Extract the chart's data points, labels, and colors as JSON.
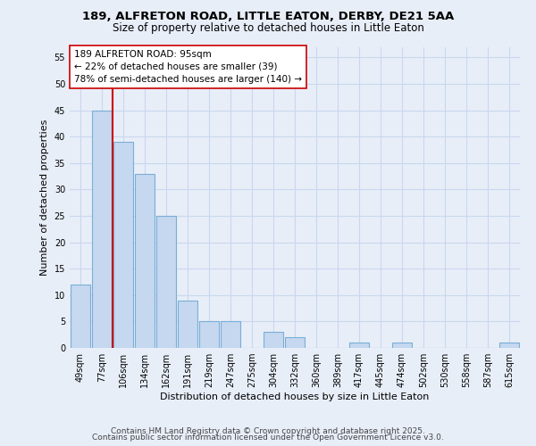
{
  "title_line1": "189, ALFRETON ROAD, LITTLE EATON, DERBY, DE21 5AA",
  "title_line2": "Size of property relative to detached houses in Little Eaton",
  "xlabel": "Distribution of detached houses by size in Little Eaton",
  "ylabel": "Number of detached properties",
  "categories": [
    "49sqm",
    "77sqm",
    "106sqm",
    "134sqm",
    "162sqm",
    "191sqm",
    "219sqm",
    "247sqm",
    "275sqm",
    "304sqm",
    "332sqm",
    "360sqm",
    "389sqm",
    "417sqm",
    "445sqm",
    "474sqm",
    "502sqm",
    "530sqm",
    "558sqm",
    "587sqm",
    "615sqm"
  ],
  "values": [
    12,
    45,
    39,
    33,
    25,
    9,
    5,
    5,
    0,
    3,
    2,
    0,
    0,
    1,
    0,
    1,
    0,
    0,
    0,
    0,
    1
  ],
  "bar_color": "#c5d8f0",
  "bar_edge_color": "#7aaed6",
  "vline_x_idx": 1.5,
  "vline_color": "#cc0000",
  "annotation_text": "189 ALFRETON ROAD: 95sqm\n← 22% of detached houses are smaller (39)\n78% of semi-detached houses are larger (140) →",
  "annotation_box_facecolor": "#ffffff",
  "annotation_box_edgecolor": "#cc0000",
  "ylim": [
    0,
    57
  ],
  "yticks": [
    0,
    5,
    10,
    15,
    20,
    25,
    30,
    35,
    40,
    45,
    50,
    55
  ],
  "background_color": "#e8eef8",
  "grid_color": "#c8d8ee",
  "footer_line1": "Contains HM Land Registry data © Crown copyright and database right 2025.",
  "footer_line2": "Contains public sector information licensed under the Open Government Licence v3.0.",
  "title_fontsize": 9.5,
  "subtitle_fontsize": 8.5,
  "axis_label_fontsize": 8,
  "tick_fontsize": 7,
  "annotation_fontsize": 7.5,
  "footer_fontsize": 6.5
}
